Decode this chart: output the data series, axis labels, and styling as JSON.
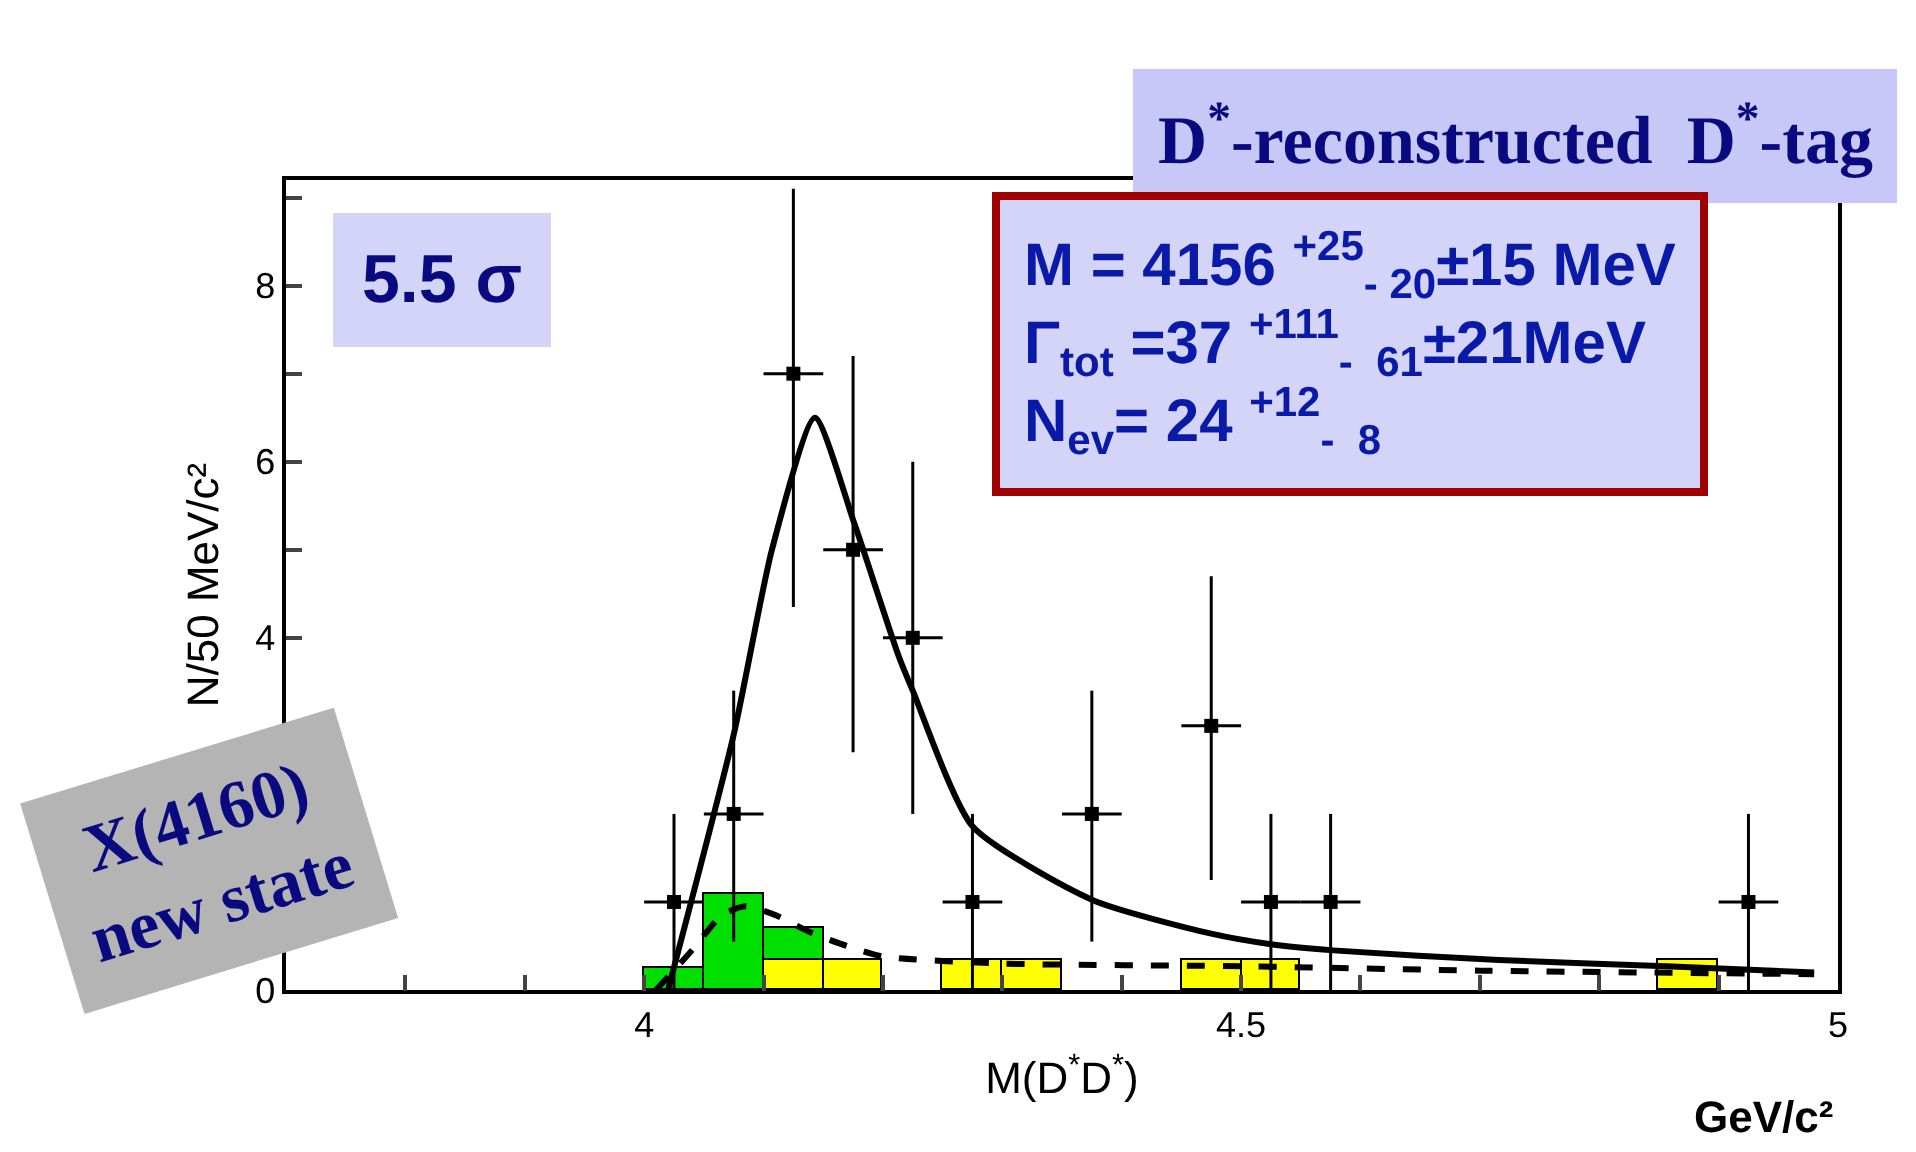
{
  "chart_data": {
    "type": "scatter",
    "title": "D$^{*}$-reconstructed  D$^{*}$-tag",
    "xlabel": "M(D$^{*}$D$^{*}$)",
    "ylabel": "N/50 MeV/c²",
    "xlim": [
      3.7,
      5.0
    ],
    "xticks": [
      {
        "value": 3.8,
        "label": null
      },
      {
        "value": 3.9,
        "label": null
      },
      4,
      {
        "value": 4.1,
        "label": null
      },
      {
        "value": 4.2,
        "label": null
      },
      {
        "value": 4.3,
        "label": null
      },
      {
        "value": 4.4,
        "label": null
      },
      4.5,
      {
        "value": 4.6,
        "label": null
      },
      {
        "value": 4.7,
        "label": null
      },
      {
        "value": 4.8,
        "label": null
      },
      {
        "value": 4.9,
        "label": null
      },
      5
    ],
    "ylim": [
      0,
      9.2
    ],
    "yticks": [
      0,
      {
        "value": 1,
        "label": null
      },
      {
        "value": 2,
        "label": null
      },
      {
        "value": 3,
        "label": null
      },
      4,
      {
        "value": 5,
        "label": null
      },
      6,
      {
        "value": 7,
        "label": null
      },
      8,
      {
        "value": 9,
        "label": null
      }
    ],
    "series": [
      {
        "type": "bar",
        "color": "#ffff00",
        "x": [
          4.125,
          4.175,
          4.275,
          4.325,
          4.475,
          4.525,
          4.875
        ],
        "values": [
          0.35,
          0.35,
          0.34,
          0.34,
          0.34,
          0.34,
          0.34
        ]
      },
      {
        "type": "bar",
        "color": "#00e000",
        "x": [
          4.025,
          4.075,
          4.125
        ],
        "values": [
          0.25,
          1.1,
          0.35
        ],
        "base": [
          0,
          0,
          0.35
        ]
      },
      {
        "type": "line",
        "color": "#000000",
        "line_style": "dashed",
        "marker": "none",
        "x": [
          4.01,
          4.04,
          4.065,
          4.085,
          4.11,
          4.14,
          4.17,
          4.2,
          4.3,
          4.5,
          4.7,
          4.98
        ],
        "values": [
          0,
          0.45,
          0.85,
          0.95,
          0.85,
          0.65,
          0.5,
          0.38,
          0.3,
          0.27,
          0.22,
          0.18
        ]
      },
      {
        "type": "line",
        "color": "#000000",
        "line_style": "solid",
        "marker": "none",
        "x": [
          4.02,
          4.075,
          4.107,
          4.143,
          4.176,
          4.213,
          4.225,
          4.275,
          4.376,
          4.475,
          4.525,
          4.577,
          4.716,
          4.856,
          4.98
        ],
        "values": [
          0,
          2.9,
          5.0,
          6.5,
          5.3,
          3.8,
          3.4,
          1.86,
          1.02,
          0.64,
          0.52,
          0.45,
          0.34,
          0.27,
          0.2
        ]
      },
      {
        "color": "#000000",
        "marker": "square",
        "x": [
          4.025,
          4.075,
          4.125,
          4.175,
          4.225,
          4.275,
          4.375,
          4.475,
          4.525,
          4.575,
          4.925
        ],
        "values": [
          1,
          2,
          7,
          5,
          4,
          1,
          2,
          3,
          1,
          1,
          1
        ],
        "errors": [
          1,
          [
            0.55,
            3.4
          ],
          [
            4.35,
            9.1
          ],
          [
            2.7,
            7.2
          ],
          [
            2.0,
            6.0
          ],
          1,
          [
            0.55,
            3.4
          ],
          [
            1.25,
            4.7
          ],
          1,
          1,
          1
        ],
        "xerrors": [
          0.025,
          0.025,
          0.025,
          0.025,
          0.025,
          0.025,
          0.025,
          0.025,
          0.025,
          0.025,
          0.025
        ]
      }
    ],
    "annotations": [
      "5.5 σ",
      "M = 4156 $^{+25}$$_{- 20}$±15 MeV",
      "Γ$_{tot}$ =37 $^{+111}$$_{-  61}$±21MeV",
      "N$_{ev}$= 24 $^{+12}$$_{-  8}$",
      "X(4160)\nnew state",
      "GeV/c²"
    ]
  }
}
